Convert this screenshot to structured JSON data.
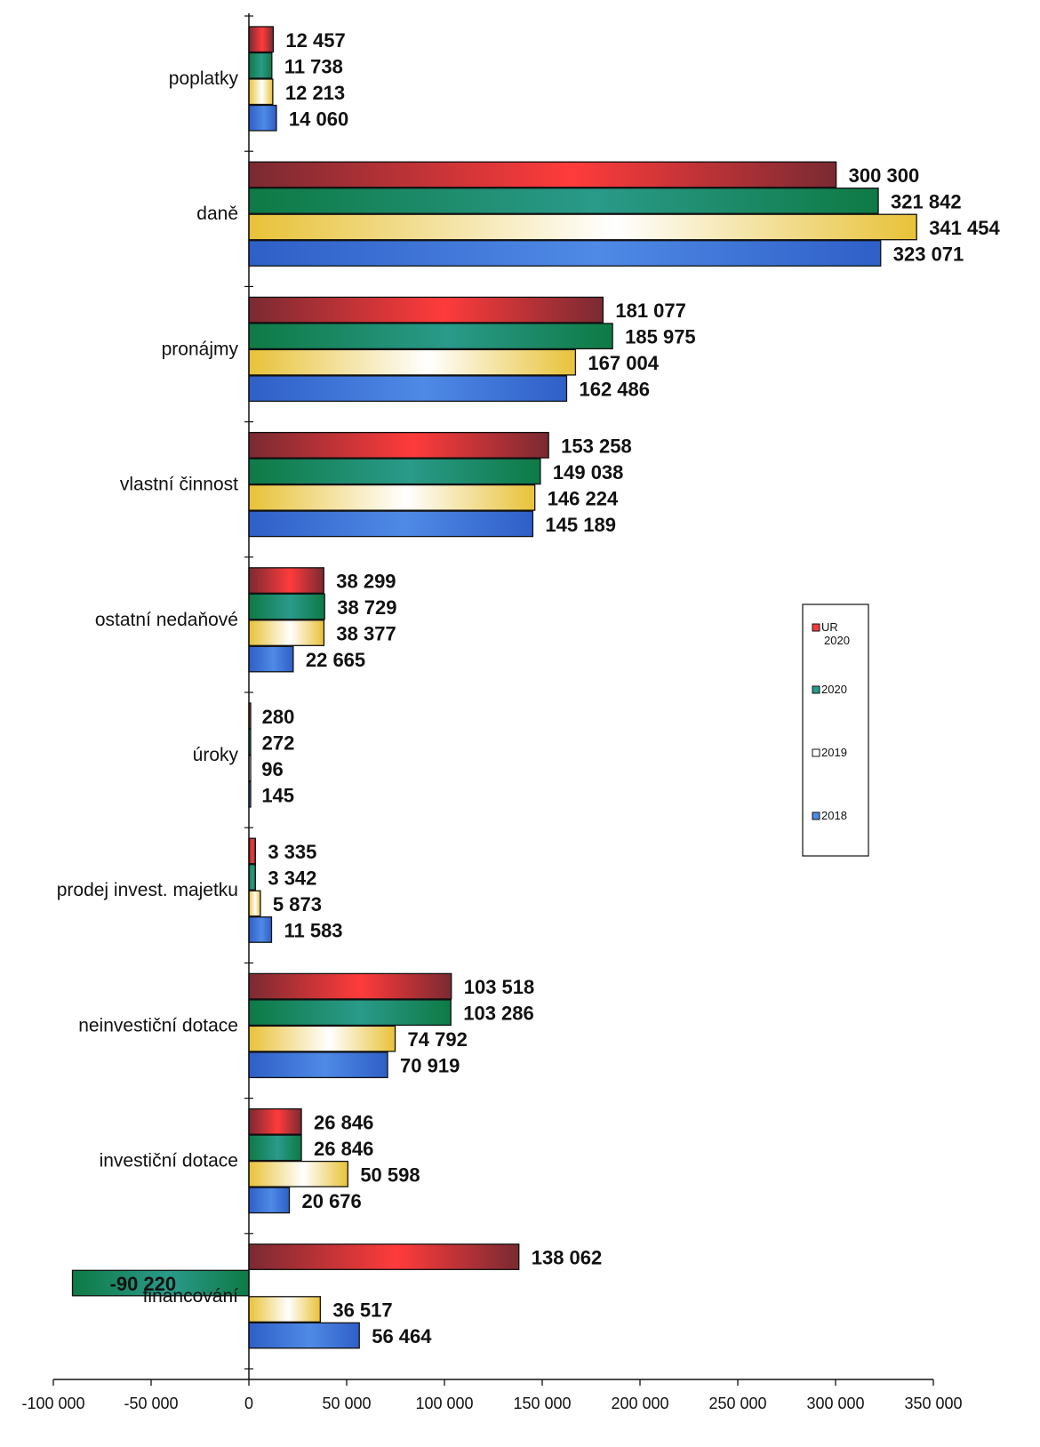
{
  "chart_data": {
    "type": "bar",
    "orientation": "horizontal",
    "categories": [
      "poplatky",
      "daně",
      "pronájmy",
      "vlastní činnost",
      "ostatní nedaňové",
      "úroky",
      "prodej invest. majetku",
      "neinvestiční dotace",
      "investiční dotace",
      "financování"
    ],
    "series": [
      {
        "name": "UR 2020",
        "values": [
          12457,
          300300,
          181077,
          153258,
          38299,
          280,
          3335,
          103518,
          26846,
          138062
        ],
        "labels": [
          "12 457",
          "300 300",
          "181 077",
          "153 258",
          "38 299",
          "280",
          "3 335",
          "103 518",
          "26 846",
          "138 062"
        ]
      },
      {
        "name": "2020",
        "values": [
          11738,
          321842,
          185975,
          149038,
          38729,
          272,
          3342,
          103286,
          26846,
          -90220
        ],
        "labels": [
          "11 738",
          "321 842",
          "185 975",
          "149 038",
          "38 729",
          "272",
          "3 342",
          "103 286",
          "26 846",
          "-90 220"
        ]
      },
      {
        "name": "2019",
        "values": [
          12213,
          341454,
          167004,
          146224,
          38377,
          96,
          5873,
          74792,
          50598,
          36517
        ],
        "labels": [
          "12 213",
          "341 454",
          "167 004",
          "146 224",
          "38 377",
          "96",
          "5 873",
          "74 792",
          "50 598",
          "36 517"
        ]
      },
      {
        "name": "2018",
        "values": [
          14060,
          323071,
          162486,
          145189,
          22665,
          145,
          11583,
          70919,
          20676,
          56464
        ],
        "labels": [
          "14 060",
          "323 071",
          "162 486",
          "145 189",
          "22 665",
          "145",
          "11 583",
          "70 919",
          "20 676",
          "56 464"
        ]
      }
    ],
    "xlim": [
      -100000,
      350000
    ],
    "xticks": [
      -100000,
      -50000,
      0,
      50000,
      100000,
      150000,
      200000,
      250000,
      300000,
      350000
    ],
    "xtick_labels": [
      "-100 000",
      "-50 000",
      "0",
      "50 000",
      "100 000",
      "150 000",
      "200 000",
      "250 000",
      "300 000",
      "350 000"
    ],
    "title": "",
    "xlabel": "",
    "ylabel": "",
    "grid": false,
    "legend": {
      "position": "right",
      "entries": [
        "UR 2020",
        "2020",
        "2019",
        "2018"
      ]
    },
    "colors": {
      "UR 2020": [
        "#7a2a32",
        "#ff3b3b"
      ],
      "2020": [
        "#0e7a45",
        "#2a9a8a"
      ],
      "2019": [
        "#e8c238",
        "#ffffff"
      ],
      "2018": [
        "#2f5fc7",
        "#4f8ae6"
      ]
    }
  }
}
